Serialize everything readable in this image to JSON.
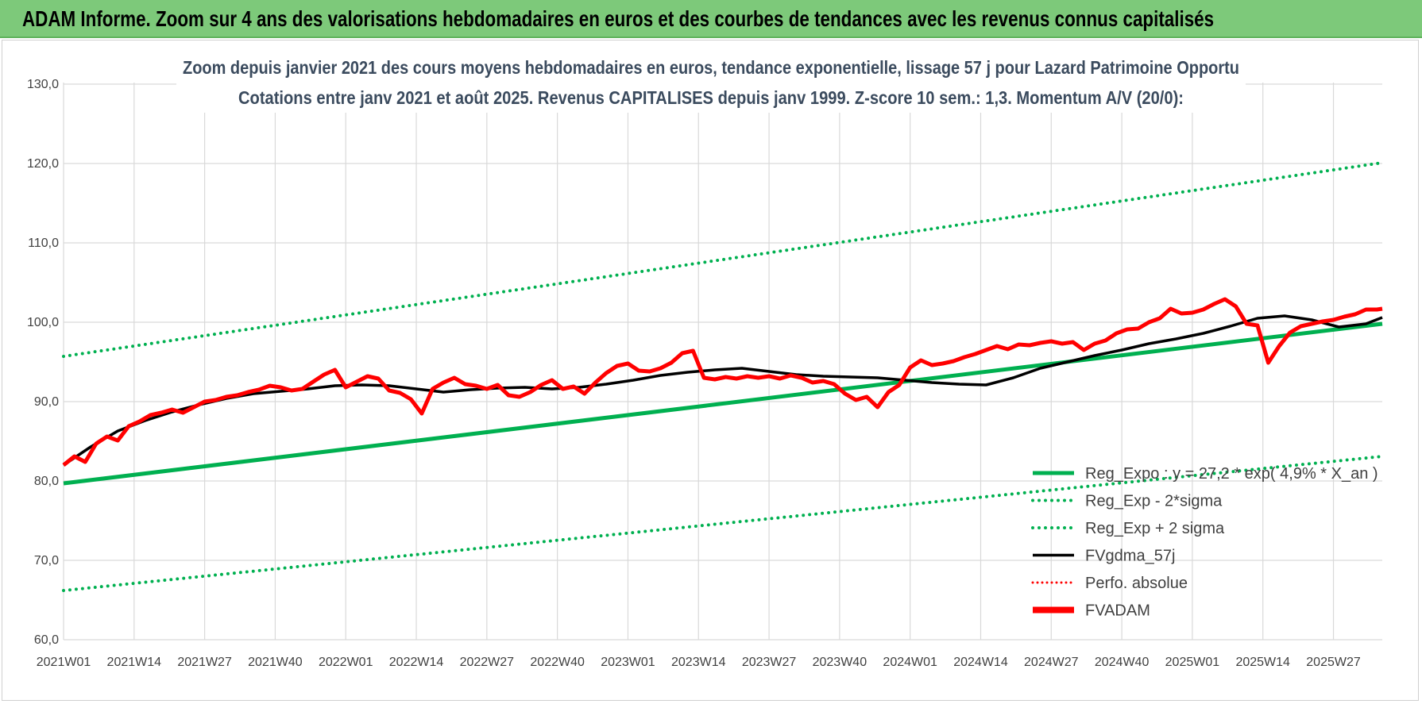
{
  "header": {
    "title": "ADAM Informe. Zoom sur 4 ans des valorisations hebdomadaires en euros et des courbes de tendances avec les revenus connus capitalisés"
  },
  "colors": {
    "banner": "#7dc97a",
    "reg_expo": "#00b050",
    "sigma": "#00b050",
    "fvgdma": "#000000",
    "perfo": "#ff0000",
    "fvadam": "#ff0000",
    "grid": "#d9d9d9"
  },
  "chart_data": {
    "type": "line",
    "title_lines": [
      "Zoom depuis janvier 2021 des cours moyens hebdomadaires en euros, tendance exponentielle, lissage 57 j pour Lazard Patrimoine Opportu",
      "Cotations entre janv 2021 et août 2025. Revenus CAPITALISES depuis janv 1999. Z-score 10 sem.: 1,3. Momentum A/V (20/0):"
    ],
    "x_tick_labels": [
      "2021W01",
      "2021W14",
      "2021W27",
      "2021W40",
      "2022W01",
      "2022W14",
      "2022W27",
      "2022W40",
      "2023W01",
      "2023W14",
      "2023W27",
      "2023W40",
      "2024W01",
      "2024W14",
      "2024W27",
      "2024W40",
      "2025W01",
      "2025W14",
      "2025W27"
    ],
    "y_tick_labels": [
      "130,0",
      "120,0",
      "110,0",
      "100,0",
      "90,0",
      "80,0",
      "70,0",
      "60,0"
    ],
    "ylim": [
      60,
      130
    ],
    "x_range_weeks": [
      0,
      243
    ],
    "grid": true,
    "legend_position": "bottom-right",
    "legend": [
      {
        "label": "Reg_Expo : y = 27,2 * exp( 4,9% * X_an )",
        "style": "solid-green"
      },
      {
        "label": "Reg_Exp - 2*sigma",
        "style": "dotted-green"
      },
      {
        "label": "Reg_Exp + 2 sigma",
        "style": "dotted-green"
      },
      {
        "label": "FVgdma_57j",
        "style": "solid-black"
      },
      {
        "label": "Perfo. absolue",
        "style": "dotted-red"
      },
      {
        "label": "FVADAM",
        "style": "solid-red-thick"
      }
    ],
    "series": [
      {
        "name": "Reg_Expo : y = 27,2 * exp( 4,9% * X_an )",
        "x": [
          0,
          243
        ],
        "y": [
          79.7,
          99.8
        ]
      },
      {
        "name": "Reg_Exp - 2*sigma",
        "x": [
          0,
          243
        ],
        "y": [
          66.2,
          83.1
        ]
      },
      {
        "name": "Reg_Exp + 2 sigma",
        "x": [
          0,
          243
        ],
        "y": [
          95.7,
          120.1
        ]
      },
      {
        "name": "FVgdma_57j",
        "x": [
          0,
          5,
          10,
          15,
          20,
          25,
          30,
          35,
          40,
          45,
          50,
          55,
          60,
          65,
          70,
          75,
          80,
          85,
          90,
          95,
          100,
          105,
          110,
          115,
          120,
          125,
          130,
          135,
          140,
          145,
          150,
          155,
          160,
          165,
          170,
          175,
          180,
          185,
          190,
          195,
          200,
          205,
          210,
          215,
          220,
          225,
          230,
          235,
          240,
          243
        ],
        "y": [
          82.0,
          84.3,
          86.3,
          87.6,
          88.7,
          89.6,
          90.4,
          91.0,
          91.3,
          91.6,
          92.0,
          92.1,
          92.0,
          91.6,
          91.2,
          91.5,
          91.7,
          91.8,
          91.6,
          91.8,
          92.2,
          92.7,
          93.3,
          93.7,
          94.0,
          94.2,
          93.8,
          93.4,
          93.2,
          93.1,
          93.0,
          92.7,
          92.4,
          92.2,
          92.1,
          93.0,
          94.2,
          95.0,
          95.8,
          96.5,
          97.3,
          97.9,
          98.6,
          99.5,
          100.5,
          100.8,
          100.3,
          99.4,
          99.8,
          100.6
        ]
      },
      {
        "name": "FVADAM",
        "x": [
          0,
          2,
          4,
          6,
          8,
          10,
          12,
          14,
          16,
          18,
          20,
          22,
          24,
          26,
          28,
          30,
          32,
          34,
          36,
          38,
          40,
          42,
          44,
          46,
          48,
          50,
          52,
          54,
          56,
          58,
          60,
          62,
          64,
          66,
          68,
          70,
          72,
          74,
          76,
          78,
          80,
          82,
          84,
          86,
          88,
          90,
          92,
          94,
          96,
          98,
          100,
          102,
          104,
          106,
          108,
          110,
          112,
          114,
          116,
          118,
          120,
          122,
          124,
          126,
          128,
          130,
          132,
          134,
          136,
          138,
          140,
          142,
          144,
          146,
          148,
          150,
          152,
          154,
          156,
          158,
          160,
          162,
          164,
          166,
          168,
          170,
          172,
          174,
          176,
          178,
          180,
          182,
          184,
          186,
          188,
          190,
          192,
          194,
          196,
          198,
          200,
          202,
          204,
          206,
          208,
          210,
          212,
          214,
          216,
          218,
          220,
          222,
          224,
          226,
          228,
          230,
          232,
          234,
          236,
          238,
          240,
          242,
          243
        ],
        "y": [
          82.0,
          83.1,
          82.4,
          84.7,
          85.6,
          85.1,
          86.9,
          87.5,
          88.3,
          88.6,
          89.0,
          88.6,
          89.3,
          90.0,
          90.2,
          90.6,
          90.8,
          91.2,
          91.5,
          92.0,
          91.8,
          91.4,
          91.6,
          92.5,
          93.4,
          94.0,
          91.8,
          92.5,
          93.2,
          92.9,
          91.4,
          91.1,
          90.3,
          88.5,
          91.6,
          92.4,
          93.0,
          92.2,
          92.0,
          91.6,
          92.1,
          90.8,
          90.6,
          91.2,
          92.1,
          92.7,
          91.6,
          91.9,
          91.0,
          92.4,
          93.6,
          94.5,
          94.8,
          93.9,
          93.8,
          94.2,
          94.9,
          96.1,
          96.4,
          93.0,
          92.8,
          93.1,
          92.9,
          93.2,
          93.0,
          93.2,
          92.9,
          93.3,
          93.0,
          92.4,
          92.6,
          92.2,
          91.0,
          90.2,
          90.6,
          89.3,
          91.2,
          92.1,
          94.3,
          95.2,
          94.6,
          94.8,
          95.1,
          95.6,
          96.0,
          96.5,
          97.0,
          96.6,
          97.2,
          97.1,
          97.4,
          97.6,
          97.3,
          97.5,
          96.5,
          97.3,
          97.7,
          98.6,
          99.1,
          99.2,
          100.0,
          100.5,
          101.7,
          101.1,
          101.2,
          101.6,
          102.3,
          102.9,
          102.0,
          99.8,
          99.6,
          94.9,
          97.0,
          98.7,
          99.5,
          99.8,
          100.1,
          100.3,
          100.7,
          101.0,
          101.6,
          101.6,
          101.7
        ]
      }
    ]
  }
}
